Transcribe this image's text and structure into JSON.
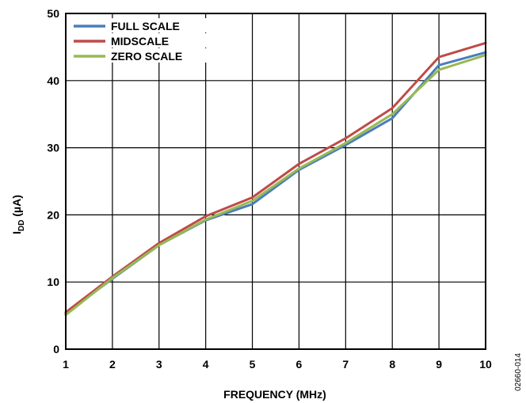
{
  "chart_data": {
    "type": "line",
    "title": "",
    "xlabel": "FREQUENCY (MHz)",
    "ylabel_main": "I",
    "ylabel_sub": "DD",
    "ylabel_unit": " (µA)",
    "x": [
      1,
      2,
      3,
      4,
      5,
      6,
      7,
      8,
      9,
      10
    ],
    "xlim": [
      1,
      10
    ],
    "ylim": [
      0,
      50
    ],
    "xticks": [
      1,
      2,
      3,
      4,
      5,
      6,
      7,
      8,
      9,
      10
    ],
    "yticks": [
      0,
      10,
      20,
      30,
      40,
      50
    ],
    "grid": true,
    "legend_position": "top-left",
    "series": [
      {
        "name": "FULL SCALE",
        "color": "#4a7ebb",
        "values": [
          5.3,
          10.5,
          15.5,
          19.2,
          21.6,
          26.7,
          30.4,
          34.4,
          42.3,
          44.2
        ]
      },
      {
        "name": "MIDSCALE",
        "color": "#be4b48",
        "values": [
          5.5,
          10.8,
          15.8,
          19.8,
          22.6,
          27.6,
          31.4,
          35.9,
          43.5,
          45.6
        ]
      },
      {
        "name": "ZERO SCALE",
        "color": "#98b954",
        "values": [
          5.1,
          10.6,
          15.5,
          19.3,
          22.1,
          26.9,
          30.7,
          35.0,
          41.6,
          43.8
        ]
      }
    ]
  },
  "figure_id": "02660-014"
}
